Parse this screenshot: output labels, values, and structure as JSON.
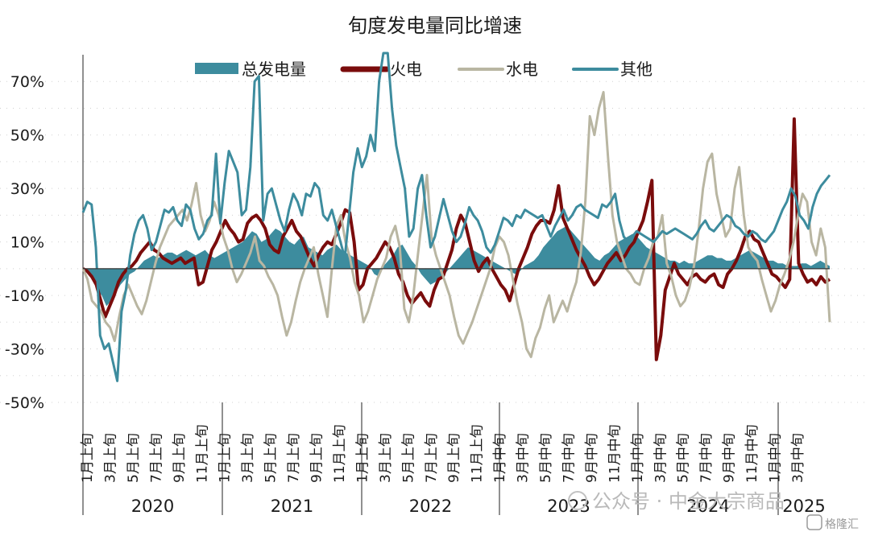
{
  "chart_data": {
    "type": "line",
    "title": "旬度发电量同比增速",
    "ylim": [
      -50,
      80
    ],
    "yticks": [
      -50,
      -30,
      -10,
      10,
      30,
      50,
      70
    ],
    "ytick_labels": [
      "-50%",
      "-30%",
      "-10%",
      "10%",
      "30%",
      "50%",
      "70%"
    ],
    "xlabels": [
      "1月上旬",
      "3月上旬",
      "5月上旬",
      "7月上旬",
      "9月上旬",
      "11月上旬",
      "1月上旬",
      "3月上旬",
      "5月上旬",
      "7月上旬",
      "9月上旬",
      "11月上旬",
      "1月上旬",
      "3月上旬",
      "5月上旬",
      "7月上旬",
      "9月上旬",
      "11月上旬",
      "1月中旬",
      "3月中旬",
      "5月中旬",
      "7月中旬",
      "9月中旬",
      "11月中旬",
      "1月中旬",
      "3月中旬",
      "5月中旬",
      "7月中旬",
      "9月中旬",
      "11月中旬",
      "1月中旬",
      "3月中旬"
    ],
    "years": [
      "2020",
      "2021",
      "2022",
      "2023",
      "2024",
      "2025"
    ],
    "legend_position": "top",
    "series": [
      {
        "name": "总发电量",
        "style": "area",
        "color": "#3d8c9e",
        "values": [
          0,
          -2,
          -4,
          -8,
          -10,
          -14,
          -12,
          -9,
          -6,
          -4,
          -2,
          -1,
          1,
          3,
          4,
          5,
          4,
          5,
          6,
          6,
          5,
          6,
          7,
          6,
          5,
          6,
          7,
          5,
          4,
          5,
          6,
          7,
          8,
          9,
          10,
          12,
          14,
          13,
          10,
          11,
          13,
          15,
          14,
          12,
          10,
          9,
          11,
          12,
          8,
          7,
          6,
          5,
          7,
          8,
          9,
          7,
          6,
          5,
          4,
          3,
          2,
          1,
          -2,
          -3,
          1,
          3,
          5,
          8,
          9,
          6,
          3,
          1,
          -2,
          -4,
          -6,
          -5,
          -3,
          -2,
          0,
          2,
          4,
          6,
          8,
          7,
          6,
          5,
          4,
          3,
          2,
          1,
          0,
          -1,
          -2,
          -1,
          1,
          2,
          3,
          5,
          8,
          10,
          12,
          14,
          15,
          16,
          14,
          12,
          10,
          8,
          6,
          4,
          3,
          5,
          6,
          8,
          10,
          11,
          12,
          13,
          12,
          10,
          8,
          7,
          6,
          5,
          4,
          3,
          3,
          2,
          3,
          2,
          2,
          3,
          4,
          5,
          5,
          4,
          4,
          3,
          3,
          4,
          5,
          6,
          7,
          6,
          5,
          4,
          3,
          3,
          2,
          2,
          1,
          1,
          1,
          2,
          2,
          1,
          2,
          3,
          2,
          1
        ]
      },
      {
        "name": "火电",
        "style": "line",
        "color": "#7a0c0c",
        "values": [
          0,
          -1,
          -3,
          -6,
          -12,
          -18,
          -14,
          -10,
          -5,
          -2,
          0,
          1,
          3,
          6,
          8,
          10,
          7,
          6,
          4,
          3,
          2,
          3,
          4,
          2,
          3,
          4,
          -6,
          -5,
          1,
          7,
          10,
          14,
          18,
          15,
          13,
          10,
          11,
          17,
          19,
          20,
          18,
          15,
          9,
          7,
          6,
          12,
          15,
          18,
          14,
          12,
          8,
          4,
          1,
          5,
          8,
          10,
          9,
          13,
          17,
          22,
          21,
          10,
          -8,
          -6,
          0,
          2,
          4,
          7,
          10,
          8,
          4,
          -2,
          -5,
          -10,
          -13,
          -11,
          -9,
          -12,
          -14,
          -8,
          -4,
          -3,
          2,
          7,
          15,
          20,
          17,
          10,
          3,
          -1,
          2,
          4,
          0,
          -3,
          -6,
          -8,
          -12,
          -6,
          0,
          4,
          8,
          13,
          16,
          18,
          18,
          17,
          22,
          31,
          19,
          15,
          11,
          7,
          4,
          1,
          -3,
          -6,
          -4,
          -1,
          2,
          4,
          6,
          3,
          5,
          8,
          10,
          14,
          18,
          25,
          33,
          -34,
          -25,
          -8,
          -3,
          2,
          -2,
          -4,
          -6,
          -3,
          -2,
          -4,
          -5,
          -3,
          -2,
          -6,
          -7,
          -2,
          0,
          3,
          7,
          12,
          14,
          11,
          10,
          6,
          2,
          -2,
          -3,
          -5,
          -7,
          -4,
          56,
          2,
          -2,
          -5,
          -4,
          -6,
          -3,
          -5,
          -4
        ]
      },
      {
        "name": "水电",
        "style": "line",
        "color": "#b9b6a2",
        "values": [
          0,
          -4,
          -12,
          -14,
          -16,
          -20,
          -22,
          -27,
          -18,
          -10,
          -6,
          -10,
          -14,
          -17,
          -12,
          -5,
          2,
          8,
          12,
          16,
          18,
          20,
          22,
          18,
          24,
          32,
          20,
          14,
          18,
          25,
          20,
          12,
          7,
          0,
          -5,
          -2,
          2,
          6,
          12,
          3,
          1,
          -3,
          -6,
          -10,
          -18,
          -25,
          -20,
          -12,
          -5,
          0,
          4,
          8,
          -2,
          -10,
          -18,
          0,
          16,
          20,
          10,
          4,
          -5,
          -10,
          -20,
          -16,
          -10,
          -4,
          0,
          4,
          12,
          16,
          8,
          -15,
          -20,
          -10,
          5,
          20,
          35,
          12,
          5,
          0,
          -5,
          -10,
          -18,
          -25,
          -28,
          -24,
          -20,
          -15,
          -10,
          -5,
          0,
          8,
          12,
          10,
          5,
          -4,
          -13,
          -20,
          -30,
          -33,
          -26,
          -22,
          -15,
          -10,
          -20,
          -16,
          -12,
          -16,
          -10,
          -5,
          6,
          25,
          57,
          50,
          60,
          66,
          42,
          20,
          10,
          5,
          0,
          -2,
          -5,
          -6,
          0,
          4,
          10,
          12,
          20,
          2,
          -3,
          -10,
          -14,
          -12,
          -7,
          1,
          14,
          30,
          40,
          43,
          28,
          20,
          12,
          15,
          30,
          38,
          20,
          8,
          5,
          3,
          -4,
          -10,
          -16,
          -12,
          -6,
          -2,
          3,
          10,
          20,
          28,
          25,
          10,
          5,
          15,
          8,
          -20
        ]
      },
      {
        "name": "其他",
        "style": "line",
        "color": "#3d8c9e",
        "values": [
          21,
          25,
          24,
          8,
          -25,
          -30,
          -28,
          -35,
          -42,
          -16,
          -8,
          5,
          13,
          18,
          20,
          15,
          7,
          10,
          16,
          22,
          21,
          23,
          18,
          16,
          24,
          22,
          15,
          11,
          13,
          18,
          20,
          43,
          17,
          32,
          44,
          40,
          36,
          20,
          22,
          38,
          70,
          72,
          18,
          28,
          30,
          24,
          18,
          14,
          22,
          28,
          25,
          20,
          28,
          27,
          32,
          30,
          20,
          18,
          22,
          16,
          10,
          4,
          20,
          36,
          45,
          38,
          42,
          50,
          44,
          70,
          82,
          110,
          60,
          46,
          38,
          30,
          12,
          15,
          30,
          35,
          20,
          8,
          12,
          19,
          26,
          20,
          14,
          10,
          12,
          17,
          23,
          20,
          18,
          14,
          8,
          6,
          9,
          14,
          19,
          18,
          16,
          20,
          19,
          22,
          21,
          20,
          19,
          20,
          16,
          12,
          16,
          19,
          22,
          18,
          20,
          23,
          24,
          22,
          21,
          20,
          19,
          24,
          23,
          25,
          28,
          18,
          12,
          10,
          12,
          14,
          13,
          12,
          11,
          10,
          12,
          14,
          13,
          14,
          15,
          14,
          13,
          12,
          11,
          13,
          16,
          18,
          15,
          14,
          16,
          18,
          20,
          19,
          16,
          15,
          13,
          12,
          14,
          13,
          11,
          10,
          12,
          14,
          18,
          22,
          25,
          30,
          27,
          20,
          18,
          15,
          23,
          28,
          31,
          33,
          35
        ]
      }
    ]
  },
  "watermark": {
    "text": "公众号 · 中金大宗商品",
    "logo_text": "格隆汇"
  }
}
